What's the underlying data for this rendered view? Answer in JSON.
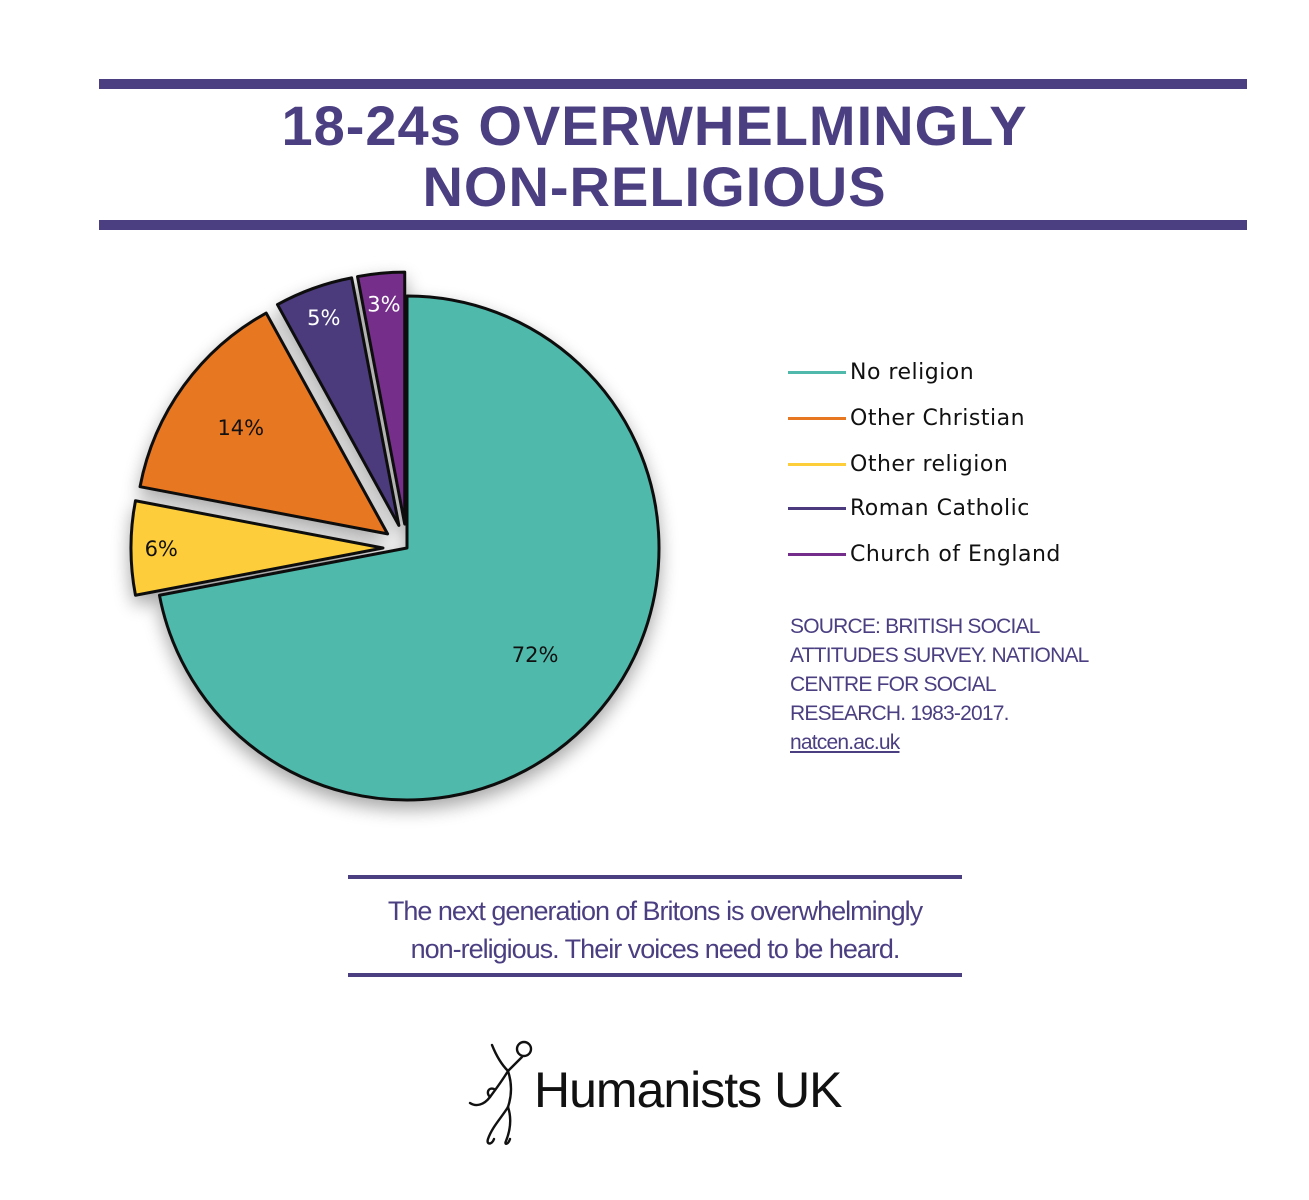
{
  "title": {
    "line1": "18-24s OVERWHELMINGLY",
    "line2": "NON-RELIGIOUS"
  },
  "chart_data": {
    "type": "pie",
    "slices": [
      {
        "name": "No religion",
        "value": 72,
        "label": "72%",
        "color": "#50b9ab",
        "exploded": false
      },
      {
        "name": "Other religion",
        "value": 6,
        "label": "6%",
        "color": "#fdcd3a",
        "exploded": true
      },
      {
        "name": "Other Christian",
        "value": 14,
        "label": "14%",
        "color": "#e87722",
        "exploded": true
      },
      {
        "name": "Roman Catholic",
        "value": 5,
        "label": "5%",
        "color": "#4b3a7d",
        "exploded": true
      },
      {
        "name": "Church of England",
        "value": 3,
        "label": "3%",
        "color": "#742d8a",
        "exploded": true
      }
    ],
    "legend": [
      {
        "label": "No religion",
        "color": "#50b9ab"
      },
      {
        "label": "Other Christian",
        "color": "#e87722"
      },
      {
        "label": "Other religion",
        "color": "#fdcd3a"
      },
      {
        "label": "Roman Catholic",
        "color": "#4b3a7d"
      },
      {
        "label": "Church of England",
        "color": "#742d8a"
      }
    ],
    "legend_position": "right"
  },
  "source": {
    "text": "SOURCE: BRITISH SOCIAL ATTITUDES SURVEY. NATIONAL CENTRE FOR SOCIAL RESEARCH. 1983-2017.",
    "link": "natcen.ac.uk"
  },
  "message": {
    "line1": "The next generation of Britons is overwhelmingly",
    "line2": "non-religious. Their voices need to be heard."
  },
  "logo": {
    "text": "Humanists UK",
    "icon": "humanist-figure-icon"
  },
  "colors": {
    "accent": "#4b3f82"
  }
}
